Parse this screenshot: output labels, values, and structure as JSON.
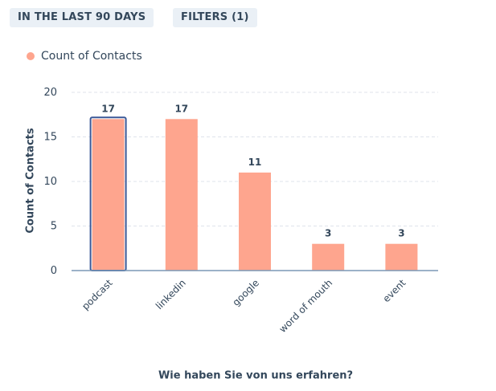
{
  "toolbar": {
    "range_label": "IN THE LAST 90 DAYS",
    "filters_label": "FILTERS (1)"
  },
  "colors": {
    "bar": "#fea58e",
    "selected_outline": "#3b5998",
    "grid": "#dfe3eb",
    "axis": "#7c98b6",
    "pill_bg": "#eaf0f6",
    "text": "#33475b"
  },
  "chart_data": {
    "type": "bar",
    "title": "",
    "xlabel": "Wie haben Sie von uns erfahren?",
    "ylabel": "Count of Contacts",
    "categories": [
      "podcast",
      "linkedin",
      "google",
      "word of mouth",
      "event"
    ],
    "series": [
      {
        "name": "Count of Contacts",
        "values": [
          17,
          17,
          11,
          3,
          3
        ],
        "color": "#fea58e"
      }
    ],
    "yticks": [
      0,
      5,
      10,
      15,
      20
    ],
    "ylim": [
      0,
      20
    ],
    "grid": true,
    "legend": "top-left",
    "selected_category": "podcast"
  }
}
